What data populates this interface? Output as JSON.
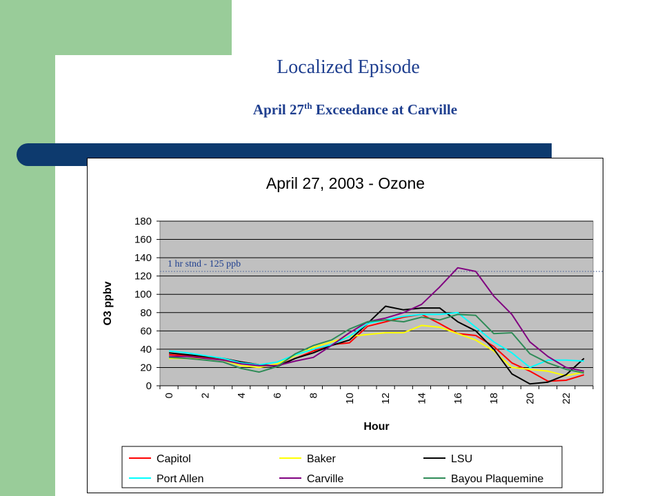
{
  "slide": {
    "title": "Localized Episode",
    "subtitle_main": "April 27",
    "subtitle_sup": "th",
    "subtitle_rest": " Exceedance at Carville"
  },
  "colors": {
    "sidebar": "#99cc99",
    "bar": "#0d3a6e",
    "title": "#1f3f8f",
    "plot_bg": "#c0c0c0"
  },
  "chart_data": {
    "type": "line",
    "title": "April 27, 2003 - Ozone",
    "xlabel": "Hour",
    "ylabel": "O3 ppbv",
    "xlim": [
      0,
      23
    ],
    "ylim": [
      0,
      180
    ],
    "x_ticks": [
      0,
      2,
      4,
      6,
      8,
      10,
      12,
      14,
      16,
      18,
      20,
      22
    ],
    "y_ticks": [
      0,
      20,
      40,
      60,
      80,
      100,
      120,
      140,
      160,
      180
    ],
    "grid": true,
    "legend_position": "bottom",
    "x": [
      0,
      1,
      2,
      3,
      4,
      5,
      6,
      7,
      8,
      9,
      10,
      11,
      12,
      13,
      14,
      15,
      16,
      17,
      18,
      19,
      20,
      21,
      22,
      23
    ],
    "series": [
      {
        "name": "Capitol",
        "color": "#ff0000",
        "values": [
          34,
          33,
          31,
          29,
          26,
          23,
          22,
          30,
          38,
          45,
          47,
          65,
          70,
          75,
          78,
          68,
          57,
          55,
          43,
          25,
          16,
          5,
          6,
          12
        ]
      },
      {
        "name": "Baker",
        "color": "#ffff00",
        "values": [
          30,
          30,
          30,
          28,
          22,
          20,
          24,
          33,
          42,
          48,
          54,
          56,
          58,
          58,
          66,
          64,
          57,
          50,
          38,
          20,
          18,
          16,
          11,
          15
        ]
      },
      {
        "name": "LSU",
        "color": "#000000",
        "values": [
          36,
          34,
          32,
          30,
          26,
          23,
          21,
          30,
          36,
          44,
          50,
          68,
          87,
          83,
          85,
          85,
          70,
          60,
          40,
          13,
          2,
          4,
          12,
          30
        ]
      },
      {
        "name": "Port Allen",
        "color": "#00ffff",
        "values": [
          38,
          36,
          33,
          30,
          25,
          23,
          26,
          34,
          40,
          45,
          54,
          68,
          72,
          76,
          78,
          78,
          80,
          64,
          48,
          36,
          20,
          28,
          28,
          27
        ]
      },
      {
        "name": "Carville",
        "color": "#800080",
        "values": [
          32,
          32,
          30,
          28,
          24,
          22,
          22,
          27,
          31,
          44,
          58,
          70,
          74,
          80,
          89,
          108,
          129,
          125,
          98,
          78,
          48,
          32,
          20,
          16
        ]
      },
      {
        "name": "Bayou Plaquemine",
        "color": "#2e8b57",
        "values": [
          31,
          30,
          28,
          26,
          19,
          15,
          21,
          35,
          44,
          50,
          62,
          70,
          72,
          70,
          75,
          72,
          78,
          77,
          57,
          58,
          35,
          25,
          18,
          14
        ]
      }
    ],
    "reference_line": {
      "value": 125,
      "label": "1 hr stnd - 125 ppb"
    }
  }
}
